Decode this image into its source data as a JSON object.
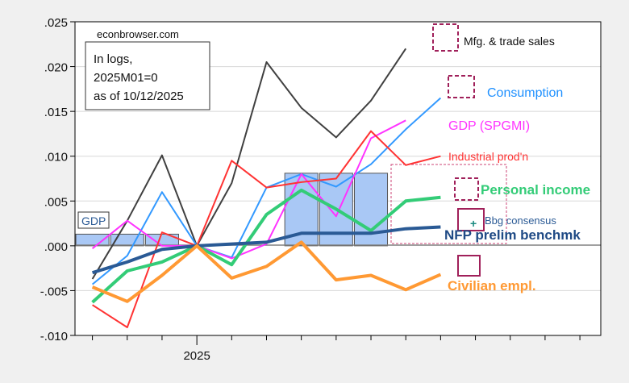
{
  "chart_data": {
    "type": "line",
    "source": "econbrowser.com",
    "note_lines": [
      "In logs,",
      "2025M01=0",
      "as of 10/12/2025"
    ],
    "x_label": "2025",
    "x_months": [
      -3,
      -2,
      -1,
      0,
      1,
      2,
      3,
      4,
      5,
      6,
      7
    ],
    "xlim": [
      -3.5,
      11.6
    ],
    "ylim": [
      -0.01,
      0.025
    ],
    "yticks": [
      ".025",
      ".020",
      ".015",
      ".010",
      ".005",
      ".000",
      "-.005",
      "-.010"
    ],
    "ytick_values": [
      0.025,
      0.02,
      0.015,
      0.01,
      0.005,
      0,
      -0.005,
      -0.01
    ],
    "grid": true,
    "series": [
      {
        "name": "Mfg. & trade sales",
        "color": "#404040",
        "width": 2,
        "values": [
          -0.0037,
          0.0028,
          0.0101,
          0,
          0.007,
          0.0205,
          0.0154,
          0.0121,
          0.0162,
          0.022,
          null
        ]
      },
      {
        "name": "Consumption",
        "color": "#3399ff",
        "width": 2,
        "values": [
          -0.0043,
          -0.0011,
          0.006,
          0,
          -0.0013,
          0.0065,
          0.008,
          0.0066,
          0.0091,
          0.013,
          0.0165
        ]
      },
      {
        "name": "GDP (SPGMI)",
        "color": "#ff33ff",
        "width": 2,
        "values": [
          -0.0003,
          0.0028,
          0.0,
          0,
          -0.0014,
          0.0002,
          0.008,
          0.0033,
          0.012,
          0.014,
          null
        ]
      },
      {
        "name": "Industrial prod'n",
        "color": "#ff3333",
        "width": 2,
        "values": [
          -0.0066,
          -0.0091,
          0.0015,
          0,
          0.0095,
          0.0065,
          0.0071,
          0.0075,
          0.0128,
          0.009,
          0.01
        ]
      },
      {
        "name": "Personal income",
        "color": "#33cc77",
        "width": 4,
        "values": [
          -0.0063,
          -0.0028,
          -0.0018,
          0,
          -0.0021,
          0.0035,
          0.0062,
          0.0041,
          0.0017,
          0.005,
          0.0054
        ]
      },
      {
        "name": "NFP prelim benchmk",
        "color": "#2a5a95",
        "width": 4,
        "values": [
          -0.003,
          -0.0018,
          -0.0004,
          0,
          0.0002,
          0.0004,
          0.0014,
          0.0014,
          0.0014,
          0.0019,
          0.0021
        ]
      },
      {
        "name": "Civilian empl.",
        "color": "#ff9933",
        "width": 4,
        "values": [
          -0.0046,
          -0.0062,
          -0.0033,
          0,
          -0.0036,
          -0.0023,
          0.0004,
          -0.0038,
          -0.0033,
          -0.0049,
          -0.0032
        ]
      }
    ],
    "bars": {
      "name": "GDP",
      "color": "#a9c8f5",
      "months": [
        -3,
        -2,
        -1,
        0,
        1,
        2,
        3,
        4,
        5
      ],
      "values": [
        0.0013,
        0.0013,
        0.0013,
        0,
        0,
        0,
        0.0081,
        0.0081,
        0.0081
      ]
    },
    "annotations": {
      "bbg": "Bbg consensus"
    }
  }
}
